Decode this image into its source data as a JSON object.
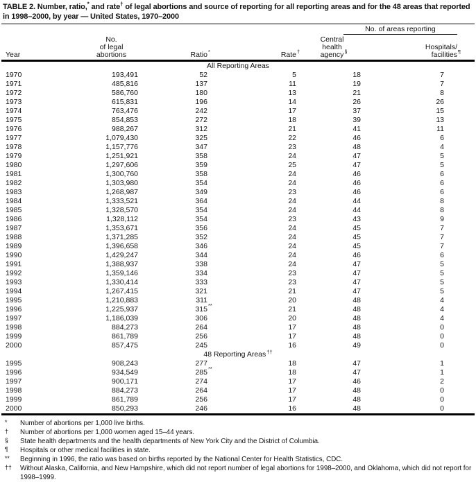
{
  "title": {
    "part1": "TABLE 2. Number, ratio,",
    "sup1": "*",
    "part2": " and rate",
    "sup2": "†",
    "part3": " of legal abortions and source of reporting for all reporting areas and for the 48 areas that reported in 1998–2000, by year — United States, 1970–2000"
  },
  "table": {
    "spanner_label": "No. of areas reporting",
    "column_keys": [
      "year",
      "no-of-legal-abortions",
      "ratio",
      "rate",
      "central-health-agency",
      "hospitals-facilities"
    ],
    "columns": [
      {
        "lines": [
          "Year"
        ],
        "marker": ""
      },
      {
        "lines": [
          "No.",
          "of legal",
          "abortions"
        ],
        "marker": ""
      },
      {
        "lines": [
          "Ratio"
        ],
        "marker": "*"
      },
      {
        "lines": [
          "Rate"
        ],
        "marker": "†"
      },
      {
        "lines": [
          "Central",
          "health",
          "agency"
        ],
        "marker": "§"
      },
      {
        "lines": [
          "Hospitals/",
          "facilities"
        ],
        "marker": "¶"
      }
    ],
    "sections": [
      {
        "label": "All Reporting Areas",
        "marker": "",
        "rows": [
          [
            "1970",
            "193,491",
            "52",
            "5",
            "18",
            "7"
          ],
          [
            "1971",
            "485,816",
            "137",
            "11",
            "19",
            "7"
          ],
          [
            "1972",
            "586,760",
            "180",
            "13",
            "21",
            "8"
          ],
          [
            "1973",
            "615,831",
            "196",
            "14",
            "26",
            "26"
          ],
          [
            "1974",
            "763,476",
            "242",
            "17",
            "37",
            "15"
          ],
          [
            "1975",
            "854,853",
            "272",
            "18",
            "39",
            "13"
          ],
          [
            "1976",
            "988,267",
            "312",
            "21",
            "41",
            "11"
          ],
          [
            "1977",
            "1,079,430",
            "325",
            "22",
            "46",
            "6"
          ],
          [
            "1978",
            "1,157,776",
            "347",
            "23",
            "48",
            "4"
          ],
          [
            "1979",
            "1,251,921",
            "358",
            "24",
            "47",
            "5"
          ],
          [
            "1980",
            "1,297,606",
            "359",
            "25",
            "47",
            "5"
          ],
          [
            "1981",
            "1,300,760",
            "358",
            "24",
            "46",
            "6"
          ],
          [
            "1982",
            "1,303,980",
            "354",
            "24",
            "46",
            "6"
          ],
          [
            "1983",
            "1,268,987",
            "349",
            "23",
            "46",
            "6"
          ],
          [
            "1984",
            "1,333,521",
            "364",
            "24",
            "44",
            "8"
          ],
          [
            "1985",
            "1,328,570",
            "354",
            "24",
            "44",
            "8"
          ],
          [
            "1986",
            "1,328,112",
            "354",
            "23",
            "43",
            "9"
          ],
          [
            "1987",
            "1,353,671",
            "356",
            "24",
            "45",
            "7"
          ],
          [
            "1988",
            "1,371,285",
            "352",
            "24",
            "45",
            "7"
          ],
          [
            "1989",
            "1,396,658",
            "346",
            "24",
            "45",
            "7"
          ],
          [
            "1990",
            "1,429,247",
            "344",
            "24",
            "46",
            "6"
          ],
          [
            "1991",
            "1,388,937",
            "338",
            "24",
            "47",
            "5"
          ],
          [
            "1992",
            "1,359,146",
            "334",
            "23",
            "47",
            "5"
          ],
          [
            "1993",
            "1,330,414",
            "333",
            "23",
            "47",
            "5"
          ],
          [
            "1994",
            "1,267,415",
            "321",
            "21",
            "47",
            "5"
          ],
          [
            "1995",
            "1,210,883",
            "311",
            "20",
            "48",
            "4"
          ],
          [
            "1996",
            "1,225,937",
            "315**",
            "21",
            "48",
            "4"
          ],
          [
            "1997",
            "1,186,039",
            "306",
            "20",
            "48",
            "4"
          ],
          [
            "1998",
            "884,273",
            "264",
            "17",
            "48",
            "0"
          ],
          [
            "1999",
            "861,789",
            "256",
            "17",
            "48",
            "0"
          ],
          [
            "2000",
            "857,475",
            "245",
            "16",
            "49",
            "0"
          ]
        ]
      },
      {
        "label": "48 Reporting Areas",
        "marker": "††",
        "rows": [
          [
            "1995",
            "908,243",
            "277",
            "18",
            "47",
            "1"
          ],
          [
            "1996",
            "934,549",
            "285**",
            "18",
            "47",
            "1"
          ],
          [
            "1997",
            "900,171",
            "274",
            "17",
            "46",
            "2"
          ],
          [
            "1998",
            "884,273",
            "264",
            "17",
            "48",
            "0"
          ],
          [
            "1999",
            "861,789",
            "256",
            "17",
            "48",
            "0"
          ],
          [
            "2000",
            "850,293",
            "246",
            "16",
            "48",
            "0"
          ]
        ]
      }
    ]
  },
  "footnotes": [
    {
      "marker": "*",
      "text": "Number of abortions per 1,000 live births."
    },
    {
      "marker": "†",
      "text": "Number of abortions per 1,000 women aged 15–44 years."
    },
    {
      "marker": "§",
      "text": "State health departments and the health departments of New York City and the District of Columbia."
    },
    {
      "marker": "¶",
      "text": "Hospitals or other medical facilities in state."
    },
    {
      "marker": "**",
      "text": "Beginning in 1996, the ratio was based on births reported by the National Center for Health Statistics, CDC."
    },
    {
      "marker": "††",
      "text": "Without Alaska, California, and New Hampshire, which did not report number of legal abortions for 1998–2000, and Oklahoma, which did not report for 1998–1999."
    }
  ]
}
